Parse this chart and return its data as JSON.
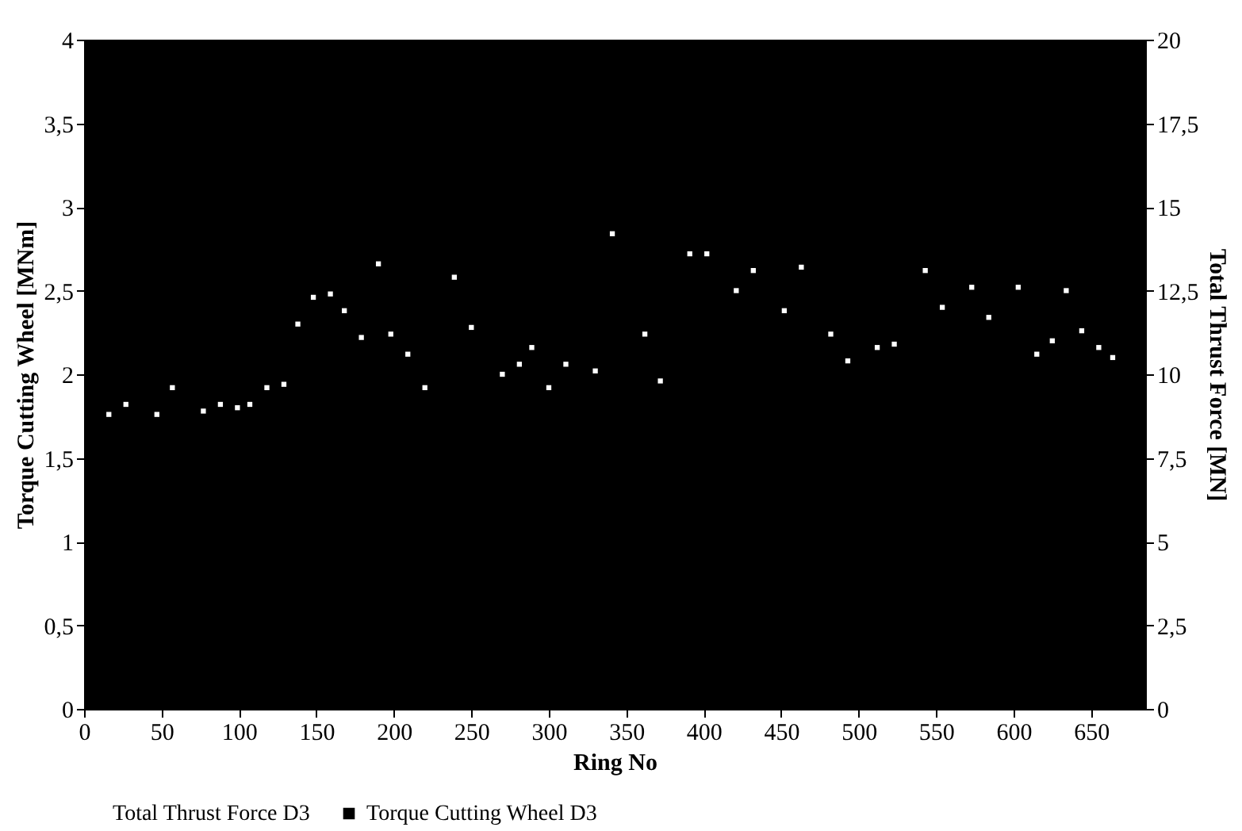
{
  "chart_data": {
    "type": "scatter",
    "xlabel": "Ring No",
    "ylabel": "Torque Cutting Wheel [MNm]",
    "y2label": "Total Thrust Force [MN]",
    "xlim": [
      0,
      685
    ],
    "xticks": [
      0,
      50,
      100,
      150,
      200,
      250,
      300,
      350,
      400,
      450,
      500,
      550,
      600,
      650
    ],
    "ylim": [
      0,
      4
    ],
    "yticks": [
      0,
      {
        "value": 0.5,
        "label": "0,5"
      },
      1,
      {
        "value": 1.5,
        "label": "1,5"
      },
      2,
      {
        "value": 2.5,
        "label": "2,5"
      },
      3,
      {
        "value": 3.5,
        "label": "3,5"
      },
      4
    ],
    "y2lim": [
      0,
      20
    ],
    "y2ticks": [
      0,
      {
        "value": 2.5,
        "label": "2,5"
      },
      5,
      {
        "value": 7.5,
        "label": "7,5"
      },
      10,
      {
        "value": 12.5,
        "label": "12,5"
      },
      15,
      {
        "value": 17.5,
        "label": "17,5"
      },
      20
    ],
    "grid": false,
    "legend": "bottom",
    "marker": "square",
    "series": [
      {
        "name": "Total Thrust Force   D3",
        "color": "#ffffff",
        "axis": "y2",
        "x": [
          16,
          27,
          47,
          57,
          77,
          88,
          99,
          107,
          118,
          129,
          138,
          148,
          159,
          168,
          179,
          190,
          198,
          209,
          220,
          239,
          250,
          270,
          281,
          289,
          300,
          311,
          330,
          341,
          362,
          372,
          391,
          402,
          421,
          432,
          452,
          463,
          482,
          493,
          512,
          523,
          543,
          554,
          573,
          584,
          603,
          615,
          625,
          634,
          644,
          655,
          664
        ],
        "values": [
          8.8,
          9.1,
          8.8,
          9.6,
          8.9,
          9.1,
          9.0,
          9.1,
          9.6,
          9.7,
          11.5,
          12.3,
          12.4,
          11.9,
          11.1,
          13.3,
          11.2,
          10.6,
          9.6,
          12.9,
          11.4,
          10.0,
          10.3,
          10.8,
          9.6,
          10.3,
          10.1,
          14.2,
          11.2,
          9.8,
          13.6,
          13.6,
          12.5,
          13.1,
          11.9,
          13.2,
          11.2,
          10.4,
          10.8,
          10.9,
          13.1,
          12.0,
          12.6,
          11.7,
          12.6,
          10.6,
          11.0,
          12.5,
          11.3,
          10.8,
          10.5
        ]
      },
      {
        "name": "Torque Cutting Wheel   D3",
        "color": "#000000",
        "type": "line",
        "axis": "y"
      }
    ]
  }
}
